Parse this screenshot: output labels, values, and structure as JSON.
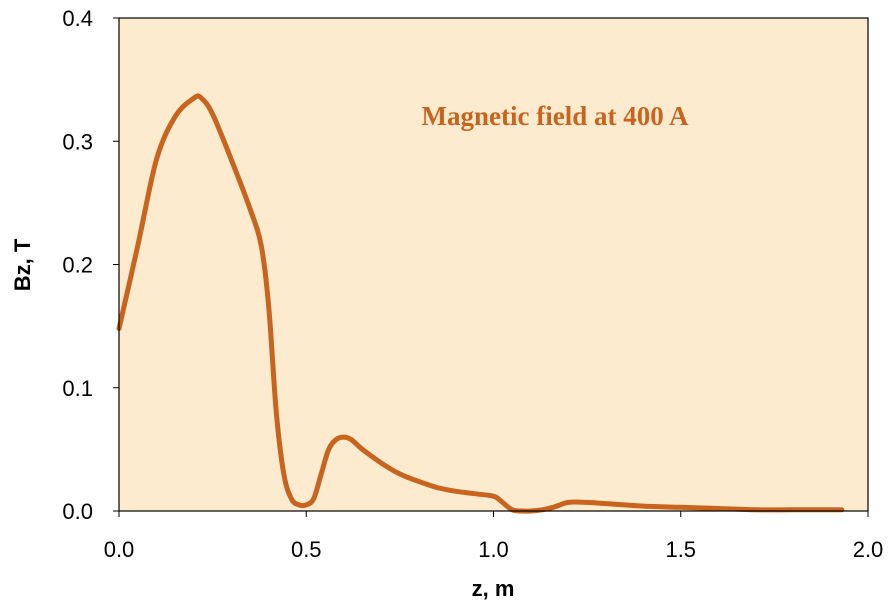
{
  "chart_data": {
    "type": "line",
    "annotation": "Magnetic field at 400 A",
    "xlabel": "z, m",
    "ylabel": "Bz, T",
    "xlim": [
      0.0,
      2.0
    ],
    "ylim": [
      0.0,
      0.4
    ],
    "x_ticks": [
      "0.0",
      "0.5",
      "1.0",
      "1.5",
      "2.0"
    ],
    "y_ticks": [
      "0.0",
      "0.1",
      "0.2",
      "0.3",
      "0.4"
    ],
    "grid": false,
    "legend": "none",
    "colors": {
      "plot_background": "#FDEBD0",
      "line": "#C8641E",
      "annotation": "#C8641E",
      "frame": "#000000"
    },
    "series": [
      {
        "x": [
          0.0,
          0.05,
          0.1,
          0.15,
          0.2,
          0.22,
          0.25,
          0.3,
          0.35,
          0.38,
          0.4,
          0.42,
          0.44,
          0.46,
          0.48,
          0.5,
          0.52,
          0.54,
          0.56,
          0.58,
          0.6,
          0.62,
          0.65,
          0.7,
          0.75,
          0.8,
          0.85,
          0.9,
          0.95,
          1.0,
          1.02,
          1.05,
          1.08,
          1.1,
          1.13,
          1.16,
          1.2,
          1.25,
          1.3,
          1.4,
          1.5,
          1.6,
          1.7,
          1.8,
          1.93
        ],
        "y": [
          0.148,
          0.215,
          0.285,
          0.32,
          0.335,
          0.335,
          0.322,
          0.285,
          0.245,
          0.215,
          0.165,
          0.08,
          0.03,
          0.01,
          0.005,
          0.005,
          0.01,
          0.03,
          0.05,
          0.058,
          0.06,
          0.058,
          0.05,
          0.039,
          0.03,
          0.024,
          0.019,
          0.016,
          0.014,
          0.012,
          0.008,
          0.001,
          0.0,
          0.0,
          0.001,
          0.003,
          0.007,
          0.007,
          0.006,
          0.004,
          0.003,
          0.002,
          0.001,
          0.001,
          0.001
        ]
      }
    ]
  }
}
